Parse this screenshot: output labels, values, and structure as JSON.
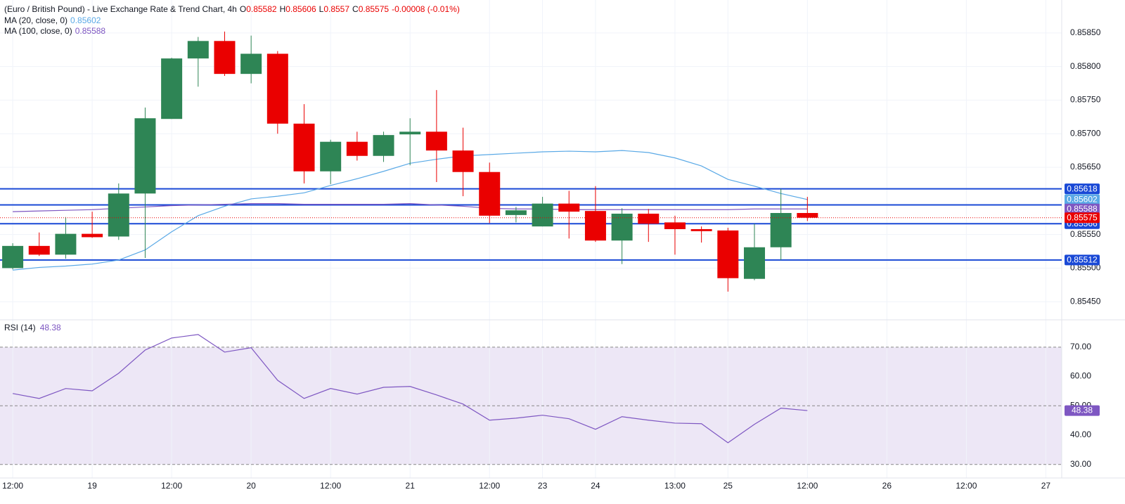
{
  "header": {
    "title": "(Euro / British Pound) - Live Exchange Rate & Trend Chart, 4h",
    "ohlc_labels": [
      "O",
      "H",
      "L",
      "C"
    ],
    "change": "-0.00008 (-0.01%)"
  },
  "chart_data": [
    {
      "type": "candlestick",
      "x": [
        0,
        1,
        2,
        3,
        4,
        5,
        6,
        7,
        8,
        9,
        10,
        11,
        12,
        13,
        14,
        15,
        16,
        17,
        18,
        19,
        20,
        21,
        22,
        23,
        24,
        25,
        26,
        27,
        28,
        29,
        30
      ],
      "open": [
        0.855,
        0.85533,
        0.8552,
        0.85551,
        0.85547,
        0.85611,
        0.85722,
        0.85812,
        0.85838,
        0.85789,
        0.85819,
        0.85715,
        0.85644,
        0.85688,
        0.85667,
        0.85699,
        0.85703,
        0.85675,
        0.85643,
        0.85579,
        0.85562,
        0.85596,
        0.85585,
        0.85541,
        0.85581,
        0.85568,
        0.85558,
        0.85556,
        0.85484,
        0.85531,
        0.85582
      ],
      "high": [
        0.85537,
        0.85553,
        0.85576,
        0.85584,
        0.85626,
        0.85739,
        0.85813,
        0.85844,
        0.85852,
        0.85846,
        0.85823,
        0.85744,
        0.85691,
        0.85703,
        0.85703,
        0.85723,
        0.85765,
        0.85709,
        0.85657,
        0.85591,
        0.85606,
        0.85615,
        0.85622,
        0.85589,
        0.85588,
        0.85578,
        0.85562,
        0.8556,
        0.85566,
        0.85618,
        0.85606
      ],
      "low": [
        0.85498,
        0.85518,
        0.85514,
        0.85545,
        0.85542,
        0.85515,
        0.85722,
        0.8577,
        0.85786,
        0.85775,
        0.857,
        0.85626,
        0.85625,
        0.8566,
        0.85658,
        0.85653,
        0.85628,
        0.85607,
        0.85567,
        0.85568,
        0.85562,
        0.85544,
        0.85539,
        0.85506,
        0.85539,
        0.8552,
        0.85538,
        0.85465,
        0.85482,
        0.85512,
        0.8557
      ],
      "close": [
        0.85533,
        0.8552,
        0.85551,
        0.85546,
        0.85611,
        0.85723,
        0.85812,
        0.85838,
        0.85789,
        0.85819,
        0.85715,
        0.85644,
        0.85688,
        0.85667,
        0.85698,
        0.85703,
        0.85675,
        0.85643,
        0.85578,
        0.85586,
        0.85596,
        0.85584,
        0.85541,
        0.85581,
        0.85566,
        0.85558,
        0.85555,
        0.85485,
        0.85531,
        0.85582,
        0.85575
      ],
      "up_color": "#2e8555",
      "down_color": "#ea0000",
      "series": [
        {
          "name": "MA (20, close, 0)",
          "color": "#5aa9e6",
          "values": [
            0.85497,
            0.85501,
            0.85503,
            0.85506,
            0.85512,
            0.85527,
            0.85554,
            0.85578,
            0.85592,
            0.85603,
            0.85607,
            0.85612,
            0.85623,
            0.85633,
            0.85644,
            0.85656,
            0.85662,
            0.85667,
            0.85669,
            0.85671,
            0.85673,
            0.85674,
            0.85673,
            0.85675,
            0.85672,
            0.85664,
            0.85652,
            0.85632,
            0.85622,
            0.85611,
            0.85602
          ]
        },
        {
          "name": "MA (100, close, 0)",
          "color": "#7e57c2",
          "values": [
            0.85584,
            0.85585,
            0.85586,
            0.85587,
            0.85589,
            0.85591,
            0.85593,
            0.85594,
            0.85595,
            0.85596,
            0.85596,
            0.85595,
            0.85595,
            0.85595,
            0.85595,
            0.85596,
            0.85594,
            0.85592,
            0.85589,
            0.85588,
            0.85588,
            0.85587,
            0.85587,
            0.85587,
            0.85587,
            0.85587,
            0.85587,
            0.85587,
            0.85588,
            0.85588,
            0.85588
          ]
        }
      ],
      "levels": [
        0.85618,
        0.85594,
        0.85566,
        0.85512
      ],
      "level_color": "#1a49d6",
      "xlim": [
        -0.48,
        39.6
      ],
      "xticks": [
        {
          "value": 0,
          "label": "12:00"
        },
        {
          "value": 3,
          "label": "19"
        },
        {
          "value": 6,
          "label": "12:00"
        },
        {
          "value": 9,
          "label": "20"
        },
        {
          "value": 12,
          "label": "12:00"
        },
        {
          "value": 15,
          "label": "21"
        },
        {
          "value": 18,
          "label": "12:00"
        },
        {
          "value": 20,
          "label": "23"
        },
        {
          "value": 22,
          "label": "24"
        },
        {
          "value": 25,
          "label": "13:00"
        },
        {
          "value": 27,
          "label": "25"
        },
        {
          "value": 30,
          "label": "12:00"
        },
        {
          "value": 33,
          "label": "26"
        },
        {
          "value": 36,
          "label": "12:00"
        },
        {
          "value": 39,
          "label": "27"
        }
      ],
      "ylim": [
        0.85423,
        0.85899
      ],
      "yticks": [
        {
          "value": 0.8585,
          "label": "0.85850"
        },
        {
          "value": 0.858,
          "label": "0.85800"
        },
        {
          "value": 0.8575,
          "label": "0.85750"
        },
        {
          "value": 0.857,
          "label": "0.85700"
        },
        {
          "value": 0.8565,
          "label": "0.85650"
        },
        {
          "value": 0.8555,
          "label": "0.85550"
        },
        {
          "value": 0.855,
          "label": "0.85500"
        },
        {
          "value": 0.8545,
          "label": "0.85450"
        }
      ],
      "grid": true
    },
    {
      "type": "line",
      "x": [
        0,
        1,
        2,
        3,
        4,
        5,
        6,
        7,
        8,
        9,
        10,
        11,
        12,
        13,
        14,
        15,
        16,
        17,
        18,
        19,
        20,
        21,
        22,
        23,
        24,
        25,
        26,
        27,
        28,
        29,
        30
      ],
      "series": [
        {
          "name": "RSI (14)",
          "color": "#7e57c2",
          "values": [
            54.2,
            52.5,
            55.9,
            55.1,
            61.1,
            69.0,
            73.1,
            74.3,
            68.3,
            69.8,
            58.7,
            52.5,
            55.9,
            54.0,
            56.3,
            56.6,
            53.7,
            50.6,
            45.1,
            45.8,
            46.8,
            45.6,
            42.0,
            46.3,
            45.1,
            44.1,
            43.9,
            37.4,
            43.7,
            49.2,
            48.38
          ]
        }
      ],
      "levels": [
        70,
        50,
        30
      ],
      "band_color": "#ede7f6",
      "ylim": [
        25.4,
        79.3
      ],
      "yticks": [
        {
          "value": 70,
          "label": "70.00"
        },
        {
          "value": 60,
          "label": "60.00"
        },
        {
          "value": 50,
          "label": "50.00"
        },
        {
          "value": 40,
          "label": "40.00"
        },
        {
          "value": 30,
          "label": "30.00"
        }
      ]
    }
  ]
}
